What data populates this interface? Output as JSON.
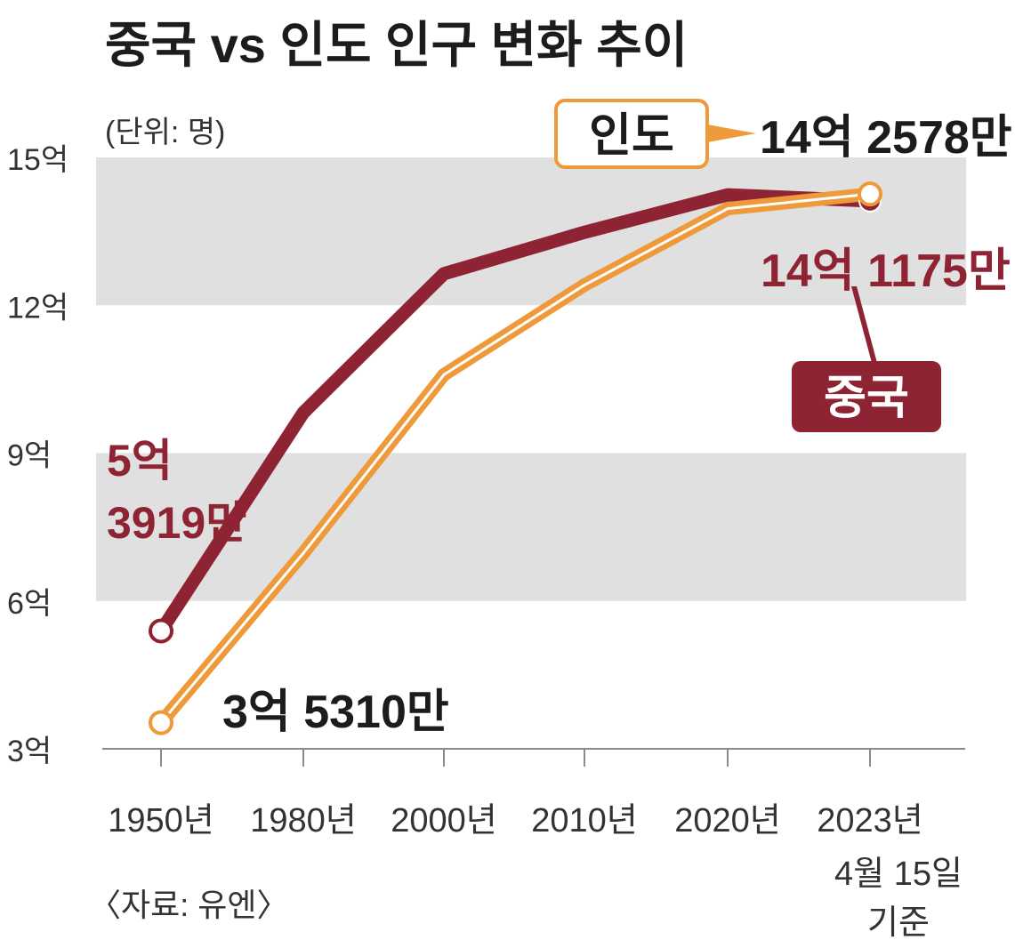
{
  "chart_data": {
    "type": "line",
    "title": "중국 vs 인도 인구 변화 추이",
    "unit_label": "(단위: 명)",
    "source": "〈자료: 유엔〉",
    "x_categories": [
      "1950년",
      "1980년",
      "2000년",
      "2010년",
      "2020년",
      "2023년"
    ],
    "x_last_extra": [
      "4월 15일",
      "기준"
    ],
    "y_ticks": [
      {
        "value": 3,
        "label": "3억"
      },
      {
        "value": 6,
        "label": "6억"
      },
      {
        "value": 9,
        "label": "9억"
      },
      {
        "value": 12,
        "label": "12억"
      },
      {
        "value": 15,
        "label": "15억"
      }
    ],
    "ylim": [
      3,
      15
    ],
    "y_unit": "억 명",
    "grid_bands": [
      [
        6,
        9
      ],
      [
        12,
        15
      ]
    ],
    "series": [
      {
        "name": "중국",
        "color": "#8e2333",
        "values": [
          5.3919,
          9.82,
          12.64,
          13.48,
          14.24,
          14.1175
        ],
        "start_label": [
          "5억",
          "3919만"
        ],
        "end_label": "14억 1175만"
      },
      {
        "name": "인도",
        "color": "#ee9a3a",
        "values": [
          3.531,
          6.97,
          10.59,
          12.41,
          13.96,
          14.2578
        ],
        "start_label": "3억 5310만",
        "end_label": "14억 2578만"
      }
    ]
  }
}
